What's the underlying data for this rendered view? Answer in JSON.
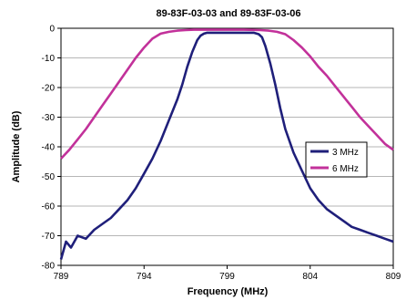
{
  "chart_data": {
    "type": "line",
    "title": "89-83F-03-03 and 89-83F-03-06",
    "xlabel": "Frequency (MHz)",
    "ylabel": "Amplitude (dB)",
    "xlim": [
      789,
      809
    ],
    "ylim": [
      -80,
      0
    ],
    "xticks": [
      789,
      794,
      799,
      804,
      809
    ],
    "yticks": [
      0,
      -10,
      -20,
      -30,
      -40,
      -50,
      -60,
      -70,
      -80
    ],
    "grid": "horizontal",
    "legend": "right",
    "series": [
      {
        "name": "3 MHz",
        "color": "#1f1f7a",
        "x": [
          789.0,
          789.3,
          789.6,
          790.0,
          790.5,
          791.0,
          791.5,
          792.0,
          792.5,
          793.0,
          793.5,
          794.0,
          794.5,
          795.0,
          795.5,
          796.0,
          796.3,
          796.6,
          796.9,
          797.2,
          797.4,
          797.6,
          797.8,
          798.2,
          799.0,
          800.0,
          800.6,
          800.9,
          801.1,
          801.3,
          801.6,
          801.9,
          802.2,
          802.5,
          803.0,
          803.5,
          804.0,
          804.5,
          805.0,
          805.5,
          806.0,
          806.5,
          807.0,
          807.5,
          808.0,
          808.5,
          809.0
        ],
        "y": [
          -78,
          -72,
          -74,
          -70,
          -71,
          -68,
          -66,
          -64,
          -61,
          -58,
          -54,
          -49,
          -44,
          -38,
          -31,
          -24,
          -19,
          -13,
          -8,
          -4,
          -2.5,
          -1.8,
          -1.5,
          -1.5,
          -1.5,
          -1.5,
          -1.5,
          -2,
          -3,
          -6,
          -12,
          -19,
          -27,
          -34,
          -42,
          -48,
          -54,
          -58,
          -61,
          -63,
          -65,
          -67,
          -68,
          -69,
          -70,
          -71,
          -72
        ]
      },
      {
        "name": "6 MHz",
        "color": "#c2319a",
        "x": [
          789.0,
          789.5,
          790.0,
          790.5,
          791.0,
          791.5,
          792.0,
          792.5,
          793.0,
          793.5,
          794.0,
          794.5,
          795.0,
          795.5,
          796.0,
          796.5,
          797.0,
          798.0,
          799.0,
          800.0,
          801.0,
          801.5,
          802.0,
          802.5,
          803.0,
          803.5,
          804.0,
          804.5,
          805.0,
          805.5,
          806.0,
          806.5,
          807.0,
          807.5,
          808.0,
          808.5,
          809.0
        ],
        "y": [
          -44,
          -41,
          -37.5,
          -34,
          -30,
          -26,
          -22,
          -18,
          -14,
          -10,
          -6.5,
          -3.5,
          -1.8,
          -1.2,
          -0.8,
          -0.6,
          -0.5,
          -0.5,
          -0.5,
          -0.5,
          -0.6,
          -0.8,
          -1.2,
          -2,
          -4,
          -6.5,
          -9.5,
          -13,
          -16,
          -19.5,
          -23,
          -26.5,
          -30,
          -33,
          -36,
          -39,
          -41
        ]
      }
    ]
  }
}
